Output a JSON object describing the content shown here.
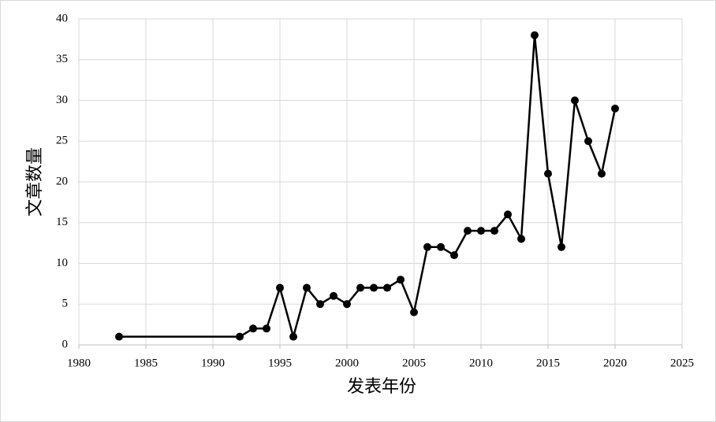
{
  "chart_data": {
    "type": "line",
    "x_label": "发表年份",
    "y_label": "文章数量",
    "x": [
      1983,
      1992,
      1993,
      1994,
      1995,
      1996,
      1997,
      1998,
      1999,
      2000,
      2001,
      2002,
      2003,
      2004,
      2005,
      2006,
      2007,
      2008,
      2009,
      2010,
      2011,
      2012,
      2013,
      2014,
      2015,
      2016,
      2017,
      2018,
      2019,
      2020
    ],
    "series": [
      {
        "color": "#000000",
        "values": [
          1,
          1,
          2,
          2,
          7,
          1,
          7,
          5,
          6,
          5,
          7,
          7,
          7,
          8,
          4,
          12,
          12,
          11,
          14,
          14,
          14,
          16,
          13,
          38,
          21,
          12,
          30,
          25,
          21,
          29
        ]
      }
    ],
    "xlim": [
      1980,
      2025
    ],
    "xticks": [
      1980,
      1985,
      1990,
      1995,
      2000,
      2005,
      2010,
      2015,
      2020,
      2025
    ],
    "ylim": [
      0,
      40
    ],
    "yticks": [
      0,
      5,
      10,
      15,
      20,
      25,
      30,
      35,
      40
    ],
    "grid": true
  }
}
